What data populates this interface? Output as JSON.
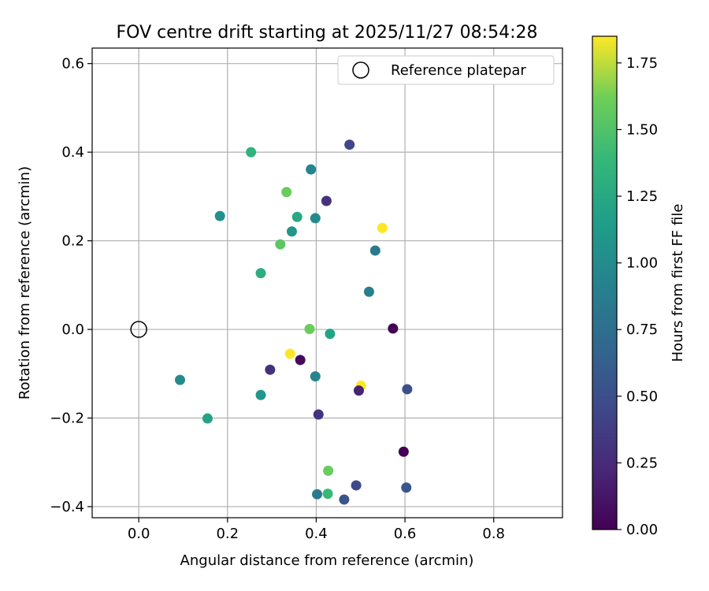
{
  "chart_data": {
    "type": "scatter",
    "title": "FOV centre drift starting at 2025/11/27 08:54:28",
    "xlabel": "Angular distance from reference (arcmin)",
    "ylabel": "Rotation from reference (arcmin)",
    "xlim": [
      -0.105,
      0.955
    ],
    "ylim": [
      -0.425,
      0.635
    ],
    "xticks": [
      0.0,
      0.2,
      0.4,
      0.6,
      0.8
    ],
    "xtick_labels": [
      "0.0",
      "0.2",
      "0.4",
      "0.6",
      "0.8"
    ],
    "yticks": [
      -0.4,
      -0.2,
      0.0,
      0.2,
      0.4,
      0.6
    ],
    "ytick_labels": [
      "−0.4",
      "−0.2",
      "0.0",
      "0.2",
      "0.4",
      "0.6"
    ],
    "grid": true,
    "legend": {
      "position": "top-right",
      "entries": [
        "Reference platepar"
      ]
    },
    "reference_point": {
      "x": 0.0,
      "y": 0.0,
      "label": "Reference platepar"
    },
    "colorbar": {
      "label": "Hours from first FF file",
      "range": [
        0.0,
        1.85
      ],
      "colormap": "viridis",
      "ticks": [
        0.0,
        0.25,
        0.5,
        0.75,
        1.0,
        1.25,
        1.5,
        1.75
      ],
      "tick_labels": [
        "0.00",
        "0.25",
        "0.50",
        "0.75",
        "1.00",
        "1.25",
        "1.50",
        "1.75"
      ]
    },
    "points": [
      {
        "x": 0.253,
        "y": 0.4,
        "hours": 1.35
      },
      {
        "x": 0.475,
        "y": 0.417,
        "hours": 0.45
      },
      {
        "x": 0.388,
        "y": 0.361,
        "hours": 0.95
      },
      {
        "x": 0.333,
        "y": 0.31,
        "hours": 1.6
      },
      {
        "x": 0.423,
        "y": 0.29,
        "hours": 0.3
      },
      {
        "x": 0.183,
        "y": 0.256,
        "hours": 1.05
      },
      {
        "x": 0.357,
        "y": 0.254,
        "hours": 1.25
      },
      {
        "x": 0.398,
        "y": 0.251,
        "hours": 1.0
      },
      {
        "x": 0.549,
        "y": 0.229,
        "hours": 1.85
      },
      {
        "x": 0.345,
        "y": 0.221,
        "hours": 1.1
      },
      {
        "x": 0.319,
        "y": 0.192,
        "hours": 1.55
      },
      {
        "x": 0.533,
        "y": 0.178,
        "hours": 0.85
      },
      {
        "x": 0.275,
        "y": 0.127,
        "hours": 1.3
      },
      {
        "x": 0.519,
        "y": 0.085,
        "hours": 0.9
      },
      {
        "x": 0.385,
        "y": 0.001,
        "hours": 1.6
      },
      {
        "x": 0.573,
        "y": 0.002,
        "hours": 0.0
      },
      {
        "x": 0.431,
        "y": -0.01,
        "hours": 1.2
      },
      {
        "x": 0.341,
        "y": -0.055,
        "hours": 1.85
      },
      {
        "x": 0.364,
        "y": -0.069,
        "hours": 0.05
      },
      {
        "x": 0.296,
        "y": -0.091,
        "hours": 0.3
      },
      {
        "x": 0.093,
        "y": -0.114,
        "hours": 1.0
      },
      {
        "x": 0.398,
        "y": -0.106,
        "hours": 0.95
      },
      {
        "x": 0.501,
        "y": -0.127,
        "hours": 1.85
      },
      {
        "x": 0.496,
        "y": -0.138,
        "hours": 0.2
      },
      {
        "x": 0.605,
        "y": -0.135,
        "hours": 0.5
      },
      {
        "x": 0.275,
        "y": -0.148,
        "hours": 1.1
      },
      {
        "x": 0.405,
        "y": -0.192,
        "hours": 0.3
      },
      {
        "x": 0.155,
        "y": -0.201,
        "hours": 1.2
      },
      {
        "x": 0.597,
        "y": -0.276,
        "hours": 0.0
      },
      {
        "x": 0.427,
        "y": -0.319,
        "hours": 1.6
      },
      {
        "x": 0.49,
        "y": -0.352,
        "hours": 0.45
      },
      {
        "x": 0.603,
        "y": -0.357,
        "hours": 0.55
      },
      {
        "x": 0.402,
        "y": -0.372,
        "hours": 0.85
      },
      {
        "x": 0.426,
        "y": -0.371,
        "hours": 1.4
      },
      {
        "x": 0.463,
        "y": -0.384,
        "hours": 0.55
      }
    ]
  }
}
